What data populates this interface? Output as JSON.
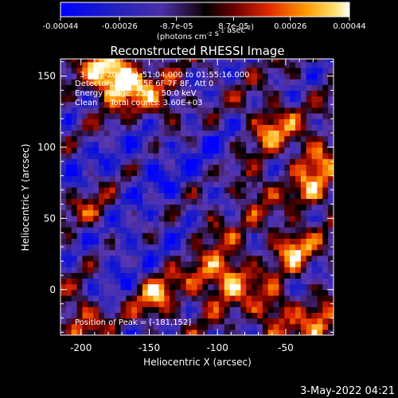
{
  "chart_data": {
    "type": "heatmap",
    "title": "Reconstructed RHESSI Image",
    "xlabel": "Heliocentric X (arcsec)",
    "ylabel": "Heliocentric Y (arcsec)",
    "xlim": [
      -215,
      -15
    ],
    "ylim": [
      -32,
      162
    ],
    "xticks": [
      -200,
      -150,
      -100,
      -50
    ],
    "yticks": [
      0,
      50,
      100,
      150
    ],
    "colorbar": {
      "range": [
        -0.00044,
        0.00044
      ],
      "ticks": [
        "-0.00044",
        "-0.00026",
        "-8.7e-05",
        "8.7e-05",
        "0.00026",
        "0.00044"
      ],
      "unit": "(photons cm<sup>-2</sup> s<sup>-1</sup> asec<sup>-2</sup>)"
    },
    "annotations": [
      "3-May-2003 01:51:04.000 to 01:55:16.000",
      "Detectors: 3F 4F 5F 6F 7F 8F, Att 0",
      "Energy Range: 25.0 - 50.0 keV",
      "Clean     Total counts: 3.60E+03"
    ],
    "peak_label": "Position of Peak = [-181,152]",
    "peak": [
      -181,
      152
    ],
    "bright_sources": [
      {
        "x": -181,
        "y": 152,
        "v": 0.00044
      },
      {
        "x": -165,
        "y": 145,
        "v": 0.00034
      },
      {
        "x": -140,
        "y": 130,
        "v": 0.00024
      },
      {
        "x": -60,
        "y": 115,
        "v": 0.0003
      },
      {
        "x": -30,
        "y": 95,
        "v": 0.00026
      },
      {
        "x": -75,
        "y": 70,
        "v": 0.00024
      },
      {
        "x": -30,
        "y": 70,
        "v": 0.00025
      },
      {
        "x": -45,
        "y": 30,
        "v": 0.00033
      },
      {
        "x": -90,
        "y": 10,
        "v": 0.00035
      },
      {
        "x": -110,
        "y": 5,
        "v": 0.00022
      },
      {
        "x": -60,
        "y": -15,
        "v": 0.00028
      },
      {
        "x": -190,
        "y": 55,
        "v": 0.0002
      },
      {
        "x": -145,
        "y": -5,
        "v": 0.0003
      },
      {
        "x": -200,
        "y": -20,
        "v": 0.00026
      },
      {
        "x": -25,
        "y": -28,
        "v": 0.00028
      },
      {
        "x": -105,
        "y": 45,
        "v": 0.0002
      }
    ],
    "dim_regions": [
      {
        "x": -170,
        "y": 40,
        "v": -0.00026
      },
      {
        "x": -150,
        "y": 90,
        "v": -0.00024
      },
      {
        "x": -120,
        "y": 110,
        "v": -0.00022
      },
      {
        "x": -200,
        "y": 85,
        "v": -0.0002
      },
      {
        "x": -95,
        "y": 75,
        "v": -0.0002
      },
      {
        "x": -175,
        "y": 10,
        "v": -0.00018
      },
      {
        "x": -125,
        "y": 50,
        "v": -0.00018
      }
    ]
  },
  "footer_timestamp": "3-May-2022 04:21"
}
